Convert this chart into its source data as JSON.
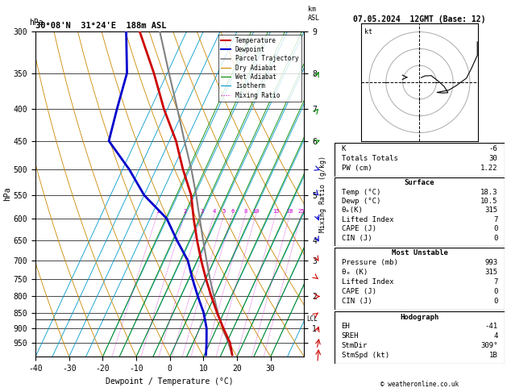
{
  "title_left": "30°08'N  31°24'E  188m ASL",
  "title_right": "07.05.2024  12GMT (Base: 12)",
  "xlabel": "Dewpoint / Temperature (°C)",
  "ylabel_left": "hPa",
  "pressure_levels": [
    300,
    350,
    400,
    450,
    500,
    550,
    600,
    650,
    700,
    750,
    800,
    850,
    900,
    950
  ],
  "temp_ticks": [
    -40,
    -30,
    -20,
    -10,
    0,
    10,
    20,
    30
  ],
  "isotherm_temps": [
    -40,
    -35,
    -30,
    -25,
    -20,
    -15,
    -10,
    -5,
    0,
    5,
    10,
    15,
    20,
    25,
    30,
    35,
    40
  ],
  "dry_adiabat_T0s": [
    -40,
    -30,
    -20,
    -10,
    0,
    10,
    20,
    30,
    40,
    50,
    60,
    70
  ],
  "wet_adiabat_T0s": [
    -20,
    -15,
    -10,
    -5,
    0,
    5,
    10,
    15,
    20,
    25,
    30
  ],
  "mixing_ratio_lines": [
    1,
    2,
    3,
    4,
    5,
    6,
    8,
    10,
    15,
    20,
    25
  ],
  "temp_profile_T": [
    18.3,
    16.0,
    12.0,
    8.0,
    4.0,
    0.0,
    -4.0,
    -8.0,
    -12.0,
    -16.0,
    -22.0,
    -28.0,
    -36.0,
    -44.0,
    -54.0
  ],
  "temp_profile_P": [
    993,
    950,
    900,
    850,
    800,
    750,
    700,
    650,
    600,
    550,
    500,
    450,
    400,
    350,
    300
  ],
  "dewp_profile_T": [
    10.5,
    9.0,
    7.0,
    4.0,
    0.0,
    -4.0,
    -8.0,
    -14.0,
    -20.0,
    -30.0,
    -38.0,
    -48.0,
    -50.0,
    -52.0,
    -58.0
  ],
  "dewp_profile_P": [
    993,
    950,
    900,
    850,
    800,
    750,
    700,
    650,
    600,
    550,
    500,
    450,
    400,
    350,
    300
  ],
  "parcel_T": [
    18.3,
    15.5,
    11.8,
    8.2,
    4.8,
    1.2,
    -2.4,
    -6.2,
    -10.2,
    -14.5,
    -19.5,
    -25.5,
    -32.0,
    -39.5,
    -48.0
  ],
  "parcel_P": [
    993,
    950,
    900,
    850,
    800,
    750,
    700,
    650,
    600,
    550,
    500,
    450,
    400,
    350,
    300
  ],
  "lcl_pressure": 870,
  "km_labels": {
    "300": "9",
    "350": "8",
    "400": "7",
    "450": "6",
    "500": "",
    "550": "5",
    "600": "",
    "650": "4",
    "700": "3",
    "750": "",
    "800": "2",
    "850": "",
    "900": "1",
    "950": ""
  },
  "color_temp": "#cc0000",
  "color_dewp": "#0000cc",
  "color_parcel": "#808080",
  "color_dry": "#cc8800",
  "color_wet": "#008800",
  "color_iso": "#0099cc",
  "color_mix": "#cc00cc",
  "wind_P": [
    993,
    950,
    900,
    850,
    800,
    750,
    700,
    650,
    600,
    550,
    500,
    450,
    400,
    350,
    300
  ],
  "wind_spd": [
    3,
    5,
    8,
    10,
    12,
    15,
    18,
    15,
    12,
    18,
    22,
    28,
    32,
    38,
    42
  ],
  "wind_dir": [
    200,
    220,
    240,
    260,
    270,
    280,
    290,
    295,
    300,
    285,
    275,
    265,
    255,
    245,
    235
  ],
  "info_K": "-6",
  "info_TT": "30",
  "info_PW": "1.22",
  "sfc_temp": "18.3",
  "sfc_dewp": "10.5",
  "sfc_theta": "315",
  "sfc_li": "7",
  "sfc_cape": "0",
  "sfc_cin": "0",
  "mu_pres": "993",
  "mu_theta": "315",
  "mu_li": "7",
  "mu_cape": "0",
  "mu_cin": "0",
  "hodo_EH": "-41",
  "hodo_SREH": "4",
  "hodo_StmDir": "309°",
  "hodo_StmSpd": "1B"
}
